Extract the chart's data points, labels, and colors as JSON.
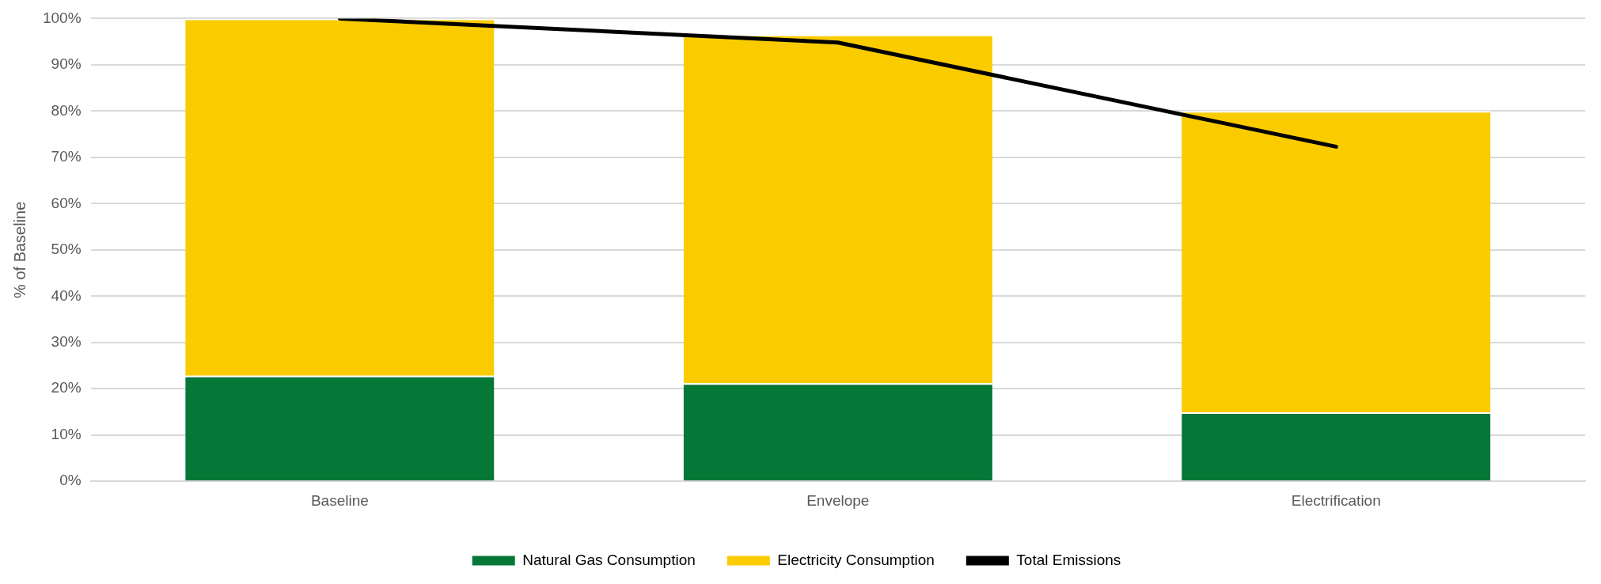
{
  "chart_data": {
    "type": "bar",
    "stacked": true,
    "ylabel": "% of Baseline",
    "categories": [
      "Baseline",
      "Envelope",
      "Electrification"
    ],
    "series": [
      {
        "name": "Natural Gas Consumption",
        "color": "#057838",
        "values": [
          22.8,
          21.2,
          14.9
        ]
      },
      {
        "name": "Electricity Consumption",
        "color": "#facc00",
        "values": [
          77.2,
          75.3,
          65.1
        ]
      },
      {
        "name": "Total Emissions",
        "type": "line",
        "color": "#000000",
        "values": [
          100,
          94.8,
          72.3
        ]
      }
    ],
    "ylim": [
      0,
      100
    ],
    "yticks": [
      {
        "value": 0,
        "label": "0%"
      },
      {
        "value": 10,
        "label": "10%"
      },
      {
        "value": 20,
        "label": "20%"
      },
      {
        "value": 30,
        "label": "30%"
      },
      {
        "value": 40,
        "label": "40%"
      },
      {
        "value": 50,
        "label": "50%"
      },
      {
        "value": 60,
        "label": "60%"
      },
      {
        "value": 70,
        "label": "70%"
      },
      {
        "value": 80,
        "label": "80%"
      },
      {
        "value": 90,
        "label": "90%"
      },
      {
        "value": 100,
        "label": "100%"
      }
    ],
    "grid": "y",
    "legend": "bottom",
    "marker": "none"
  }
}
